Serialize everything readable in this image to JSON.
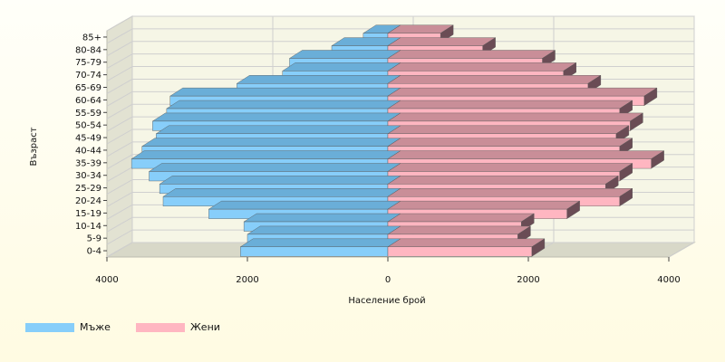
{
  "colors": {
    "male": "#87cefa",
    "male_side": "#5f9fc9",
    "male_top": "#6aaed8",
    "female": "#ffb6c1",
    "female_side": "#6a4c55",
    "female_top": "#c98e98",
    "plot_bg": "#f6f6e6",
    "grid": "#cfcfcf",
    "wall_side": "#e2e2d2",
    "wall_floor": "#d8d8c8"
  },
  "chart_data": {
    "type": "bar",
    "orientation": "horizontal-population-pyramid",
    "ylabel": "Възраст",
    "xlabel": "Население брой",
    "categories": [
      "0-4",
      "5-9",
      "10-14",
      "15-19",
      "20-24",
      "25-29",
      "30-34",
      "35-39",
      "40-44",
      "45-49",
      "50-54",
      "55-59",
      "60-64",
      "65-69",
      "70-74",
      "75-79",
      "80-84",
      "85+"
    ],
    "series": [
      {
        "name": "Мъже",
        "values": [
          2100,
          2000,
          2050,
          2550,
          3200,
          3250,
          3400,
          3650,
          3500,
          3300,
          3350,
          3150,
          3100,
          2150,
          1500,
          1400,
          800,
          350
        ]
      },
      {
        "name": "Жени",
        "values": [
          2050,
          1850,
          1900,
          2550,
          3300,
          3100,
          3300,
          3750,
          3300,
          3250,
          3450,
          3300,
          3650,
          2850,
          2500,
          2200,
          1350,
          750
        ]
      }
    ],
    "x_ticks": [
      {
        "value": -4000,
        "label": "4000"
      },
      {
        "value": -2000,
        "label": "2000"
      },
      {
        "value": 0,
        "label": "0"
      },
      {
        "value": 2000,
        "label": "2000"
      },
      {
        "value": 4000,
        "label": "4000"
      }
    ],
    "xlim": [
      -4000,
      4000
    ],
    "grid": true,
    "legend_position": "bottom-left",
    "three_d": true
  },
  "legend": {
    "male_label": "Мъже",
    "female_label": "Жени"
  }
}
